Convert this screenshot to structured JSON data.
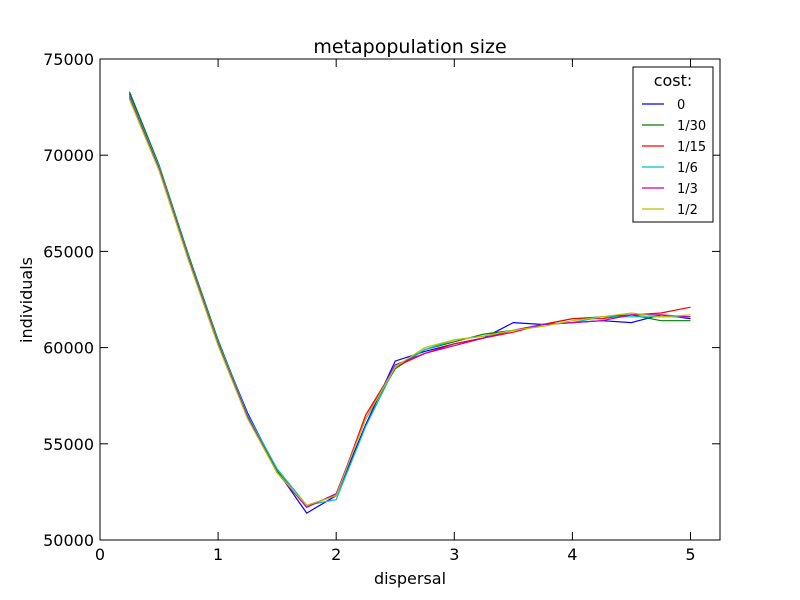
{
  "chart_data": {
    "type": "line",
    "title": "metapopulation size",
    "xlabel": "dispersal",
    "ylabel": "individuals",
    "xlim": [
      0,
      5.25
    ],
    "ylim": [
      50000,
      75000
    ],
    "xticks": [
      0,
      1,
      2,
      3,
      4,
      5
    ],
    "yticks": [
      50000,
      55000,
      60000,
      65000,
      70000,
      75000
    ],
    "grid": false,
    "legend": {
      "title": "cost:",
      "placement": "top-right"
    },
    "x": [
      0.25,
      0.5,
      0.75,
      1.0,
      1.25,
      1.5,
      1.75,
      2.0,
      2.25,
      2.5,
      2.75,
      3.0,
      3.25,
      3.5,
      3.75,
      4.0,
      4.25,
      4.5,
      4.75,
      5.0
    ],
    "series": [
      {
        "name": "0",
        "color": "#0000ff",
        "values": [
          73200,
          69400,
          64700,
          60300,
          56600,
          53600,
          51400,
          52300,
          56000,
          59300,
          59800,
          60200,
          60500,
          61300,
          61200,
          61300,
          61400,
          61300,
          61700,
          61500
        ]
      },
      {
        "name": "1/30",
        "color": "#008000",
        "values": [
          73300,
          69500,
          64800,
          60400,
          56500,
          53600,
          51700,
          52400,
          56300,
          58900,
          59900,
          60300,
          60700,
          60900,
          61200,
          61500,
          61600,
          61700,
          61400,
          61400
        ]
      },
      {
        "name": "1/15",
        "color": "#ff0000",
        "values": [
          73100,
          69300,
          64600,
          60200,
          56400,
          53500,
          51800,
          52300,
          56500,
          59000,
          59700,
          60200,
          60500,
          60800,
          61200,
          61500,
          61500,
          61700,
          61800,
          62100
        ]
      },
      {
        "name": "1/6",
        "color": "#00bfbf",
        "values": [
          73100,
          69400,
          64700,
          60300,
          56500,
          53700,
          51800,
          52100,
          55900,
          59000,
          59900,
          60400,
          60600,
          60900,
          61200,
          61300,
          61600,
          61600,
          61600,
          61600
        ]
      },
      {
        "name": "1/3",
        "color": "#bf00bf",
        "values": [
          73000,
          69300,
          64600,
          60200,
          56400,
          53500,
          51700,
          52400,
          56300,
          59100,
          59700,
          60100,
          60500,
          60900,
          61200,
          61300,
          61400,
          61700,
          61700,
          61600
        ]
      },
      {
        "name": "1/2",
        "color": "#bfbf00",
        "values": [
          72900,
          69200,
          64500,
          60100,
          56300,
          53500,
          51800,
          52300,
          56300,
          59000,
          60000,
          60400,
          60600,
          60900,
          61100,
          61400,
          61600,
          61800,
          61600,
          61700
        ]
      }
    ]
  }
}
